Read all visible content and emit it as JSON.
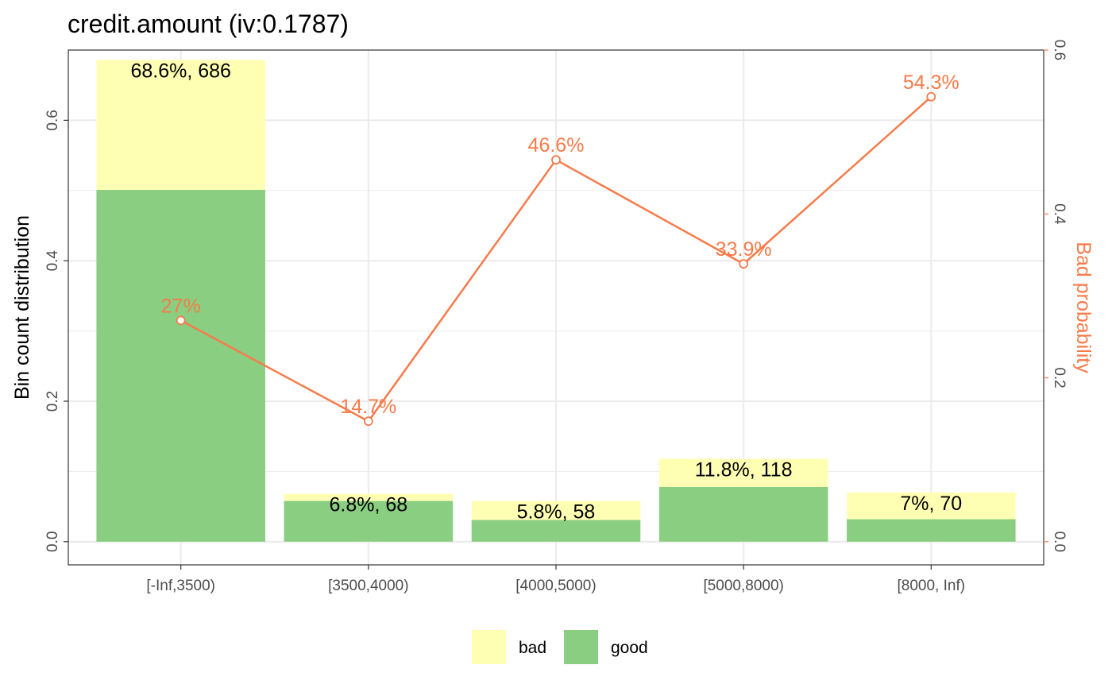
{
  "chart_data": {
    "type": "bar",
    "title": "credit.amount  (iv:0.1787)",
    "ylabel": "Bin count distribution",
    "y2label": "Bad probability",
    "categories": [
      "[-Inf,3500)",
      "[3500,4000)",
      "[4000,5000)",
      "[5000,8000)",
      "[8000, Inf)"
    ],
    "series": [
      {
        "name": "good",
        "values": [
          0.501,
          0.058,
          0.031,
          0.078,
          0.032
        ]
      },
      {
        "name": "bad",
        "values": [
          0.185,
          0.01,
          0.027,
          0.04,
          0.038
        ]
      }
    ],
    "bar_labels": [
      "68.6%, 686",
      "6.8%, 68",
      "5.8%, 58",
      "11.8%, 118",
      "7%, 70"
    ],
    "bad_probability": {
      "values": [
        0.27,
        0.147,
        0.466,
        0.339,
        0.543
      ],
      "labels": [
        "27%",
        "14.7%",
        "46.6%",
        "33.9%",
        "54.3%"
      ]
    },
    "ylim": [
      -0.033,
      0.7
    ],
    "y2lim": [
      -0.0283,
      0.6
    ],
    "yticks": [
      0.0,
      0.2,
      0.4,
      0.6
    ],
    "yticklabels": [
      "0.0",
      "0.2",
      "0.4",
      "0.6"
    ],
    "y2ticks": [
      0.0,
      0.2,
      0.4,
      0.6
    ],
    "y2ticklabels": [
      "0.0",
      "0.2",
      "0.4",
      "0.6"
    ],
    "legend": {
      "position": "bottom",
      "entries": [
        "bad",
        "good"
      ]
    },
    "grid": true,
    "colors": {
      "good": "#8ace81",
      "bad": "#ffffb3",
      "line": "#f77b4a",
      "grid": "#ebebeb",
      "panel_border": "#333333"
    }
  }
}
